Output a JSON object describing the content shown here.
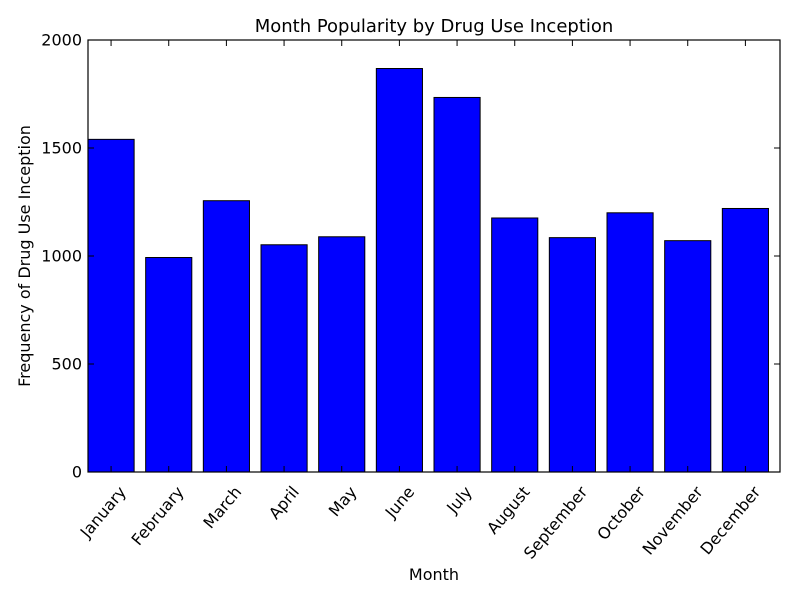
{
  "chart_data": {
    "type": "bar",
    "title": "Month Popularity by Drug Use Inception",
    "xlabel": "Month",
    "ylabel": "Frequency of Drug Use Inception",
    "categories": [
      "January",
      "February",
      "March",
      "April",
      "May",
      "June",
      "July",
      "August",
      "September",
      "October",
      "November",
      "December"
    ],
    "values": [
      1540,
      993,
      1256,
      1052,
      1089,
      1868,
      1734,
      1176,
      1085,
      1200,
      1071,
      1220
    ],
    "ylim": [
      0,
      2000
    ],
    "yticks": [
      0,
      500,
      1000,
      1500,
      2000
    ],
    "bar_color": "#0000ff",
    "edge_color": "#000000",
    "grid": false,
    "legend": "none"
  }
}
